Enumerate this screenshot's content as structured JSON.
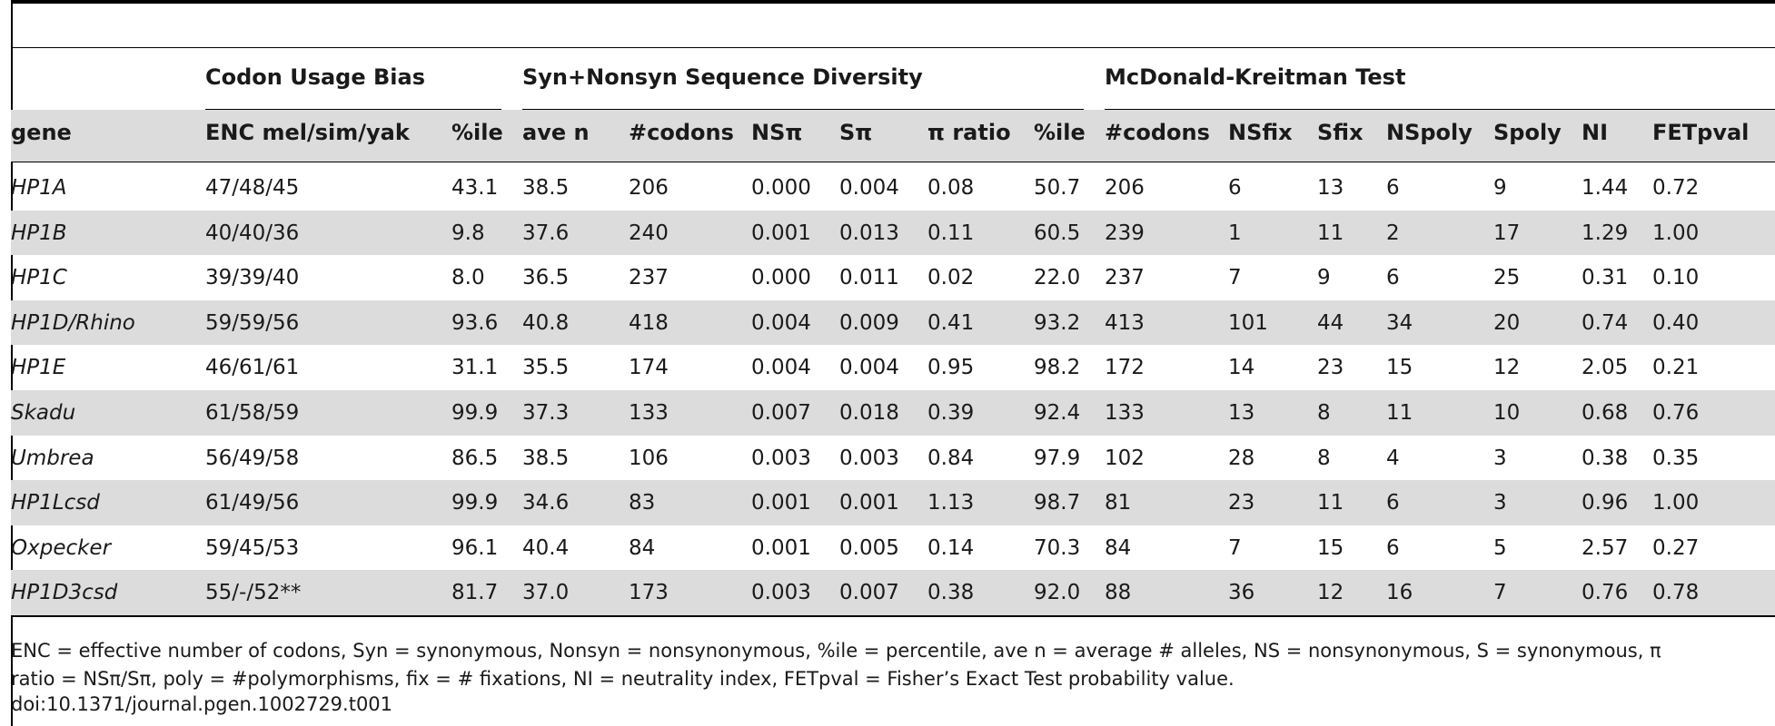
{
  "groups": [
    "Codon Usage Bias",
    "Syn+Nonsyn Sequence Diversity",
    "McDonald-Kreitman Test"
  ],
  "columns": [
    "gene",
    "ENC mel/sim/yak",
    "%ile",
    "ave n",
    "#codons",
    "NSπ",
    "Sπ",
    "π ratio",
    "%ile",
    "#codons",
    "NSfix",
    "Sfix",
    "NSpoly",
    "Spoly",
    "NI",
    "FETpval"
  ],
  "rows": [
    [
      "HP1A",
      "47/48/45",
      "43.1",
      "38.5",
      "206",
      "0.000",
      "0.004",
      "0.08",
      "50.7",
      "206",
      "6",
      "13",
      "6",
      "9",
      "1.44",
      "0.72"
    ],
    [
      "HP1B",
      "40/40/36",
      "9.8",
      "37.6",
      "240",
      "0.001",
      "0.013",
      "0.11",
      "60.5",
      "239",
      "1",
      "11",
      "2",
      "17",
      "1.29",
      "1.00"
    ],
    [
      "HP1C",
      "39/39/40",
      "8.0",
      "36.5",
      "237",
      "0.000",
      "0.011",
      "0.02",
      "22.0",
      "237",
      "7",
      "9",
      "6",
      "25",
      "0.31",
      "0.10"
    ],
    [
      "HP1D/Rhino",
      "59/59/56",
      "93.6",
      "40.8",
      "418",
      "0.004",
      "0.009",
      "0.41",
      "93.2",
      "413",
      "101",
      "44",
      "34",
      "20",
      "0.74",
      "0.40"
    ],
    [
      "HP1E",
      "46/61/61",
      "31.1",
      "35.5",
      "174",
      "0.004",
      "0.004",
      "0.95",
      "98.2",
      "172",
      "14",
      "23",
      "15",
      "12",
      "2.05",
      "0.21"
    ],
    [
      "Skadu",
      "61/58/59",
      "99.9",
      "37.3",
      "133",
      "0.007",
      "0.018",
      "0.39",
      "92.4",
      "133",
      "13",
      "8",
      "11",
      "10",
      "0.68",
      "0.76"
    ],
    [
      "Umbrea",
      "56/49/58",
      "86.5",
      "38.5",
      "106",
      "0.003",
      "0.003",
      "0.84",
      "97.9",
      "102",
      "28",
      "8",
      "4",
      "3",
      "0.38",
      "0.35"
    ],
    [
      "HP1Lcsd",
      "61/49/56",
      "99.9",
      "34.6",
      "83",
      "0.001",
      "0.001",
      "1.13",
      "98.7",
      "81",
      "23",
      "11",
      "6",
      "3",
      "0.96",
      "1.00"
    ],
    [
      "Oxpecker",
      "59/45/53",
      "96.1",
      "40.4",
      "84",
      "0.001",
      "0.005",
      "0.14",
      "70.3",
      "84",
      "7",
      "15",
      "6",
      "5",
      "2.57",
      "0.27"
    ],
    [
      "HP1D3csd",
      "55/-/52**",
      "81.7",
      "37.0",
      "173",
      "0.003",
      "0.007",
      "0.38",
      "92.0",
      "88",
      "36",
      "12",
      "16",
      "7",
      "0.76",
      "0.78"
    ]
  ],
  "footnote": {
    "line1": "ENC = effective number of codons, Syn = synonymous, Nonsyn = nonsynonymous, %ile = percentile, ave n = average # alleles, NS = nonsynonymous, S = synonymous, π",
    "line2": "ratio = NSπ/Sπ, poly = #polymorphisms, fix = # fixations, NI = neutrality index, FETpval = Fisher’s Exact Test probability value.",
    "doi": "doi:10.1371/journal.pgen.1002729.t001"
  }
}
